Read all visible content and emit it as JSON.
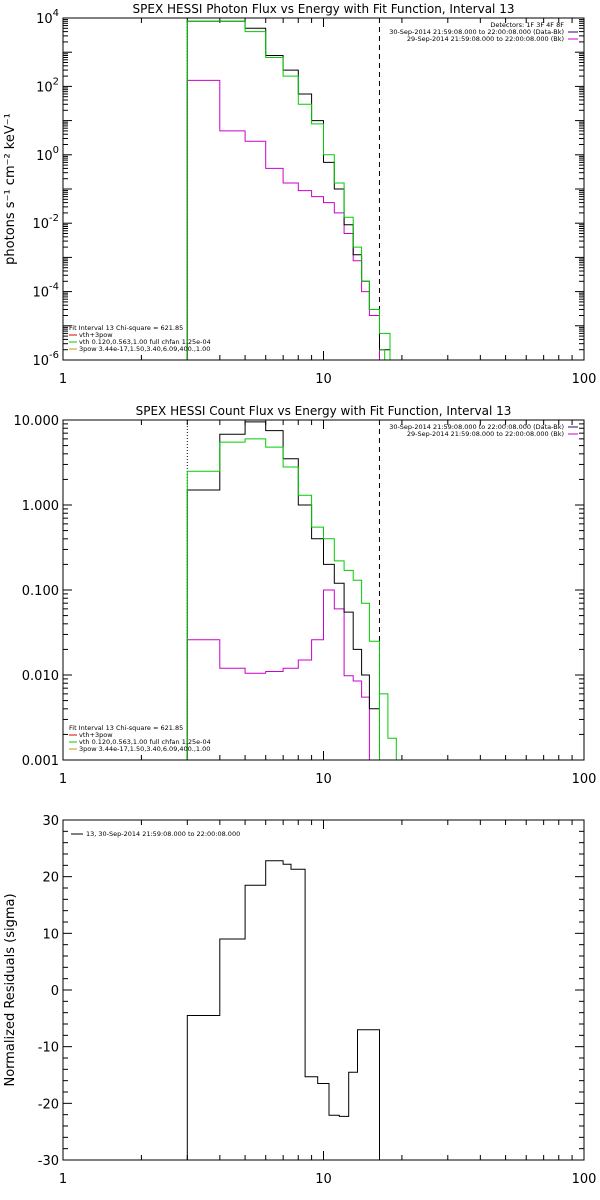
{
  "colors": {
    "black": "#000000",
    "purple": "#cc00cc",
    "green": "#00cc00",
    "red": "#dd0000",
    "orange": "#cc9900",
    "dark": "#330066"
  },
  "chart_data": [
    {
      "id": "photon",
      "type": "line",
      "title": "SPEX HESSI Photon Flux vs Energy with Fit Function, Interval 13",
      "ylabel": "photons s⁻¹ cm⁻² keV⁻¹",
      "xscale": "log",
      "yscale": "log",
      "xlim": [
        1,
        100
      ],
      "ylim": [
        1e-06,
        10000
      ],
      "x_ticks": [
        {
          "v": 1,
          "l": "1"
        },
        {
          "v": 10,
          "l": "10"
        },
        {
          "v": 100,
          "l": "100"
        }
      ],
      "y_ticks": [
        {
          "v": 10000,
          "b": "10",
          "e": "4"
        },
        {
          "v": 100,
          "b": "10",
          "e": "2"
        },
        {
          "v": 1,
          "b": "10",
          "e": "0"
        },
        {
          "v": 0.01,
          "b": "10",
          "e": "-2"
        },
        {
          "v": 0.0001,
          "b": "10",
          "e": "-4"
        },
        {
          "v": 1e-06,
          "b": "10",
          "e": "-6"
        }
      ],
      "vlines": [
        {
          "x": 3.0,
          "style": "dotted",
          "color": "#000000"
        },
        {
          "x": 16.4,
          "style": "dashed",
          "color": "#000000"
        }
      ],
      "bin_edges": [
        3.0,
        4.0,
        5.0,
        6.0,
        7.0,
        8.0,
        9.0,
        10.0,
        11.0,
        12.0,
        13.0,
        14.0,
        15.0,
        16.4,
        18.0
      ],
      "series": [
        {
          "color": "#cc00cc",
          "values": [
            150,
            5,
            2.5,
            0.4,
            0.15,
            0.09,
            0.06,
            0.04,
            0.02,
            0.005,
            0.0008,
            0.0001,
            2e-05,
            6e-07
          ]
        },
        {
          "color": "#000000",
          "values": [
            8000,
            8000,
            5000,
            800,
            300,
            60,
            10,
            0.6,
            0.1,
            0.009,
            0.0012,
            0.0002,
            3e-05,
            2e-06
          ]
        },
        {
          "color": "#00cc00",
          "values": [
            8000,
            8000,
            4000,
            700,
            200,
            30,
            8,
            1.0,
            0.15,
            0.015,
            0.002,
            0.0002,
            3e-05,
            6e-06
          ]
        }
      ],
      "extend_series": [
        {
          "color": "#00cc00",
          "from": 16.4,
          "to": 18.0,
          "values": [
            2e-06,
            5e-07
          ]
        }
      ],
      "legend_right": [
        {
          "text": "Detectors: 1F 3F 4F 8F",
          "color": "#000000"
        },
        {
          "text": "30-Sep-2014 21:59:08.000 to 22:00:08.000 (Data-Bk)",
          "color": "#330066"
        },
        {
          "text": "29-Sep-2014 21:59:08.000 to 22:00:08.000 (Bk)",
          "color": "#cc00cc"
        }
      ],
      "legend_left": [
        {
          "text": "Fit Interval 13   Chi-square = 621.85",
          "color": "#000000"
        },
        {
          "text": "vth+3pow",
          "color": "#dd0000"
        },
        {
          "text": "vth 0.120,0.563,1.00  full chfan 1.25e-04",
          "color": "#00cc00"
        },
        {
          "text": "3pow 3.44e-17,1.50,3.40,6.09,400.,1.00",
          "color": "#cc9900"
        }
      ]
    },
    {
      "id": "count",
      "type": "line",
      "title": "SPEX HESSI Count Flux vs Energy with Fit Function, Interval 13",
      "ylabel": "",
      "xscale": "log",
      "yscale": "log",
      "xlim": [
        1,
        100
      ],
      "ylim": [
        0.001,
        10
      ],
      "x_ticks": [
        {
          "v": 1,
          "l": "1"
        },
        {
          "v": 10,
          "l": "10"
        },
        {
          "v": 100,
          "l": "100"
        }
      ],
      "y_ticks": [
        {
          "v": 10,
          "l": "10.000"
        },
        {
          "v": 1,
          "l": "1.000"
        },
        {
          "v": 0.1,
          "l": "0.100"
        },
        {
          "v": 0.01,
          "l": "0.010"
        },
        {
          "v": 0.001,
          "l": "0.001"
        }
      ],
      "vlines": [
        {
          "x": 3.0,
          "style": "dotted",
          "color": "#000000"
        },
        {
          "x": 16.4,
          "style": "dashed",
          "color": "#000000"
        }
      ],
      "bin_edges": [
        3.0,
        4.0,
        5.0,
        6.0,
        7.0,
        8.0,
        9.0,
        10.0,
        11.0,
        12.0,
        13.0,
        14.0,
        15.0,
        16.4
      ],
      "series": [
        {
          "color": "#cc00cc",
          "values": [
            0.026,
            0.012,
            0.0105,
            0.011,
            0.012,
            0.015,
            0.026,
            0.1,
            0.06,
            0.0098,
            0.0085,
            0.0055,
            0.001
          ]
        },
        {
          "color": "#000000",
          "values": [
            1.5,
            6.8,
            9.5,
            7.5,
            3.5,
            1.0,
            0.4,
            0.2,
            0.12,
            0.055,
            0.02,
            0.01,
            0.004
          ]
        },
        {
          "color": "#00cc00",
          "values": [
            2.5,
            5.5,
            6.0,
            4.8,
            2.8,
            1.3,
            0.55,
            0.4,
            0.22,
            0.17,
            0.13,
            0.07,
            0.025
          ]
        }
      ],
      "extend_series": [
        {
          "color": "#00cc00",
          "from": 16.4,
          "to": 20.5,
          "values": [
            0.006,
            0.0018,
            0.0008
          ]
        },
        {
          "color": "#000000",
          "from": 16.4,
          "to": 16.4,
          "values": []
        }
      ],
      "legend_right": [
        {
          "text": "30-Sep-2014 21:59:08.000 to 22:00:08.000 (Data-Bk)",
          "color": "#330066"
        },
        {
          "text": "29-Sep-2014 21:59:08.000 to 22:00:08.000 (Bk)",
          "color": "#cc00cc"
        }
      ],
      "legend_left": [
        {
          "text": "Fit Interval 13   Chi-square = 621.85",
          "color": "#000000"
        },
        {
          "text": "vth+3pow",
          "color": "#dd0000"
        },
        {
          "text": "vth 0.120,0.563,1.00  full chfan 1.25e-04",
          "color": "#00cc00"
        },
        {
          "text": "3pow 3.44e-17,1.50,3.40,6.09,400.,1.00",
          "color": "#cc9900"
        }
      ]
    },
    {
      "id": "resid",
      "type": "line",
      "title": "",
      "ylabel": "Normalized Residuals (sigma)",
      "xscale": "log",
      "yscale": "linear",
      "xlim": [
        1,
        100
      ],
      "ylim": [
        -30,
        30
      ],
      "x_ticks": [
        {
          "v": 1,
          "l": "1"
        },
        {
          "v": 10,
          "l": "10"
        },
        {
          "v": 100,
          "l": "100"
        }
      ],
      "y_ticks": [
        {
          "v": 30,
          "l": "30"
        },
        {
          "v": 20,
          "l": "20"
        },
        {
          "v": 10,
          "l": "10"
        },
        {
          "v": 0,
          "l": "0"
        },
        {
          "v": -10,
          "l": "-10"
        },
        {
          "v": -20,
          "l": "-20"
        },
        {
          "v": -30,
          "l": "-30"
        }
      ],
      "vlines": [],
      "bin_edges": [
        3.0,
        4.0,
        5.0,
        6.0,
        7.0,
        7.5,
        8.5,
        9.5,
        10.5,
        11.5,
        12.5,
        13.5,
        14.5,
        16.4
      ],
      "series": [
        {
          "color": "#000000",
          "values": [
            -4.5,
            9,
            18.5,
            22.8,
            22.2,
            21.3,
            -15.3,
            -16.5,
            -22.1,
            -22.3,
            -14.5,
            -7,
            -7
          ],
          "drop_ends": true
        }
      ],
      "extend_series": [],
      "legend_right": [],
      "legend_left": [],
      "legend_top": [
        {
          "text": "13, 30-Sep-2014 21:59:08.000 to 22:00:08.000",
          "color": "#000000"
        }
      ]
    }
  ]
}
